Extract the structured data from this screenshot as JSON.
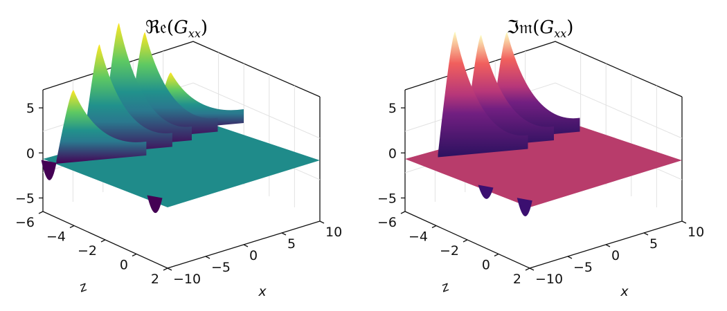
{
  "chart_data": [
    {
      "type": "surface",
      "title_main": "ℜ𝔢",
      "title_arg": "G",
      "title_sub": "xx",
      "xlabel": "x",
      "zlabel": "z",
      "xlim": [
        -10,
        10
      ],
      "zlim": [
        -6,
        2
      ],
      "vlim": [
        -6.5,
        7
      ],
      "x_ticks": [
        "−10",
        "−5",
        "0",
        "5",
        "10"
      ],
      "x_tick_values": [
        -10,
        -5,
        0,
        5,
        10
      ],
      "z_ticks": [
        "2",
        "0",
        "−2",
        "−4",
        "−6"
      ],
      "z_tick_values": [
        2,
        0,
        -2,
        -4,
        -6
      ],
      "v_ticks": [
        "5",
        "0",
        "−5"
      ],
      "v_tick_values": [
        5,
        0,
        -5
      ],
      "colormap": "viridis",
      "colormap_colors": [
        "#440154",
        "#3b528b",
        "#21918c",
        "#5ec962",
        "#fde725"
      ],
      "surface_color": "#1f8b8a",
      "grid": true,
      "peaks": [
        {
          "z": 2,
          "value": 3.5
        },
        {
          "z": 0,
          "value": 6.8
        },
        {
          "z": -2,
          "value": 8.0
        },
        {
          "z": -3.5,
          "value": 7.0
        },
        {
          "z": -5.5,
          "value": 4.5
        }
      ],
      "troughs": [
        {
          "z": 1,
          "value": -5.5
        },
        {
          "z": -5.8,
          "value": -6.5
        }
      ]
    },
    {
      "type": "surface",
      "title_main": "ℑ𝔪",
      "title_arg": "G",
      "title_sub": "xx",
      "xlabel": "x",
      "zlabel": "z",
      "xlim": [
        -10,
        10
      ],
      "zlim": [
        -6,
        2
      ],
      "vlim": [
        -6.5,
        7
      ],
      "x_ticks": [
        "−10",
        "−5",
        "0",
        "5",
        "10"
      ],
      "x_tick_values": [
        -10,
        -5,
        0,
        5,
        10
      ],
      "z_ticks": [
        "2",
        "0",
        "−2",
        "−4",
        "−6"
      ],
      "z_tick_values": [
        2,
        0,
        -2,
        -4,
        -6
      ],
      "v_ticks": [
        "5",
        "0",
        "−5"
      ],
      "v_tick_values": [
        5,
        0,
        -5
      ],
      "colormap": "magma",
      "colormap_colors": [
        "#3b0f70",
        "#8c2981",
        "#de4968",
        "#fe9f6d",
        "#fcfdbf"
      ],
      "surface_color": "#b83c6b",
      "grid": true,
      "peaks": [
        {
          "z": 0,
          "value": 6.8
        },
        {
          "z": -2,
          "value": 7.2
        },
        {
          "z": -4,
          "value": 8.0
        }
      ],
      "troughs": [
        {
          "z": 1.5,
          "value": -5.8
        },
        {
          "z": -1,
          "value": -4.0
        }
      ]
    }
  ]
}
